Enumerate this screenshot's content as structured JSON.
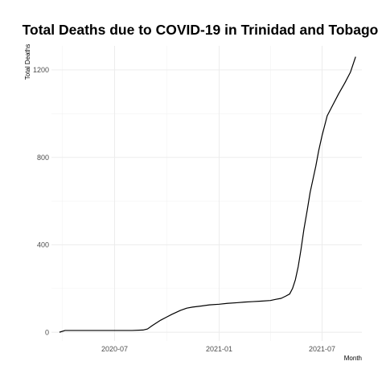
{
  "chart_data": {
    "type": "line",
    "title": "Total Deaths due to COVID-19 in Trinidad and Tobago",
    "xlabel": "Month",
    "ylabel": "Total Deaths",
    "x_tick_labels": [
      "2020-07",
      "2021-01",
      "2021-07"
    ],
    "x_ticks": [
      "2020-07-01",
      "2021-01-01",
      "2021-07-01"
    ],
    "y_ticks": [
      0,
      400,
      800,
      1200
    ],
    "ylim": [
      -40,
      1310
    ],
    "xlim": [
      "2020-03-12",
      "2021-09-09"
    ],
    "grid": true,
    "legend": "none",
    "series": [
      {
        "x": [
          "2020-03-26",
          "2020-04-05",
          "2020-05-01",
          "2020-06-01",
          "2020-07-01",
          "2020-08-01",
          "2020-08-20",
          "2020-08-28",
          "2020-09-05",
          "2020-09-20",
          "2020-10-01",
          "2020-10-10",
          "2020-10-25",
          "2020-11-05",
          "2020-11-15",
          "2020-12-01",
          "2020-12-15",
          "2021-01-01",
          "2021-01-15",
          "2021-02-01",
          "2021-02-15",
          "2021-03-01",
          "2021-03-15",
          "2021-04-01",
          "2021-04-10",
          "2021-04-20",
          "2021-04-28",
          "2021-05-05",
          "2021-05-10",
          "2021-05-15",
          "2021-05-20",
          "2021-05-25",
          "2021-05-30",
          "2021-06-05",
          "2021-06-10",
          "2021-06-15",
          "2021-06-20",
          "2021-06-25",
          "2021-07-01",
          "2021-07-05",
          "2021-07-10",
          "2021-07-20",
          "2021-07-30",
          "2021-08-10",
          "2021-08-20",
          "2021-08-29"
        ],
        "y": [
          0,
          8,
          8,
          8,
          8,
          8,
          10,
          15,
          30,
          55,
          70,
          82,
          100,
          110,
          115,
          120,
          125,
          128,
          132,
          135,
          138,
          140,
          142,
          145,
          150,
          155,
          165,
          175,
          200,
          240,
          300,
          380,
          470,
          560,
          640,
          700,
          760,
          830,
          900,
          940,
          990,
          1040,
          1090,
          1140,
          1190,
          1260
        ]
      }
    ]
  }
}
